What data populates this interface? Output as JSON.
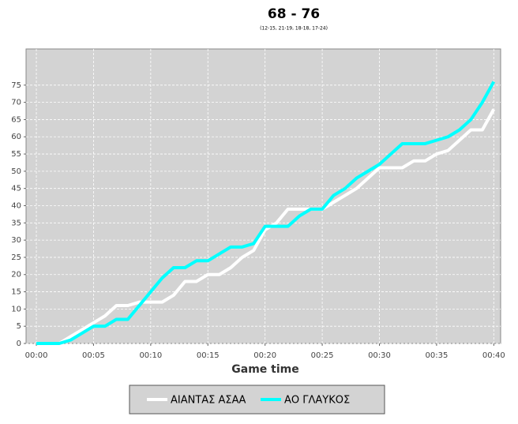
{
  "chart_data": {
    "type": "line",
    "title": "68 - 76",
    "subtitle": "(12-15, 21-19, 18-18, 17-24)",
    "x_label": "Game time",
    "x": [
      0,
      1,
      2,
      3,
      4,
      5,
      6,
      7,
      8,
      9,
      10,
      11,
      12,
      13,
      14,
      15,
      16,
      17,
      18,
      19,
      20,
      21,
      22,
      23,
      24,
      25,
      26,
      27,
      28,
      29,
      30,
      31,
      32,
      33,
      34,
      35,
      36,
      37,
      38,
      39,
      40
    ],
    "series": [
      {
        "name": "ΑΙΑΝΤΑΣ ΑΣΑΑ",
        "color": "#ffffff",
        "values": [
          0,
          0,
          0,
          2,
          4,
          6,
          8,
          11,
          11,
          12,
          12,
          12,
          14,
          18,
          18,
          20,
          20,
          22,
          25,
          27,
          33,
          35,
          39,
          39,
          39,
          39,
          41,
          43,
          45,
          48,
          51,
          51,
          51,
          53,
          53,
          55,
          56,
          59,
          62,
          62,
          68
        ]
      },
      {
        "name": "ΑΟ ΓΛΑΥΚΟΣ",
        "color": "#00ffff",
        "values": [
          0,
          0,
          0,
          1,
          3,
          5,
          5,
          7,
          7,
          11,
          15,
          19,
          22,
          22,
          24,
          24,
          26,
          28,
          28,
          29,
          34,
          34,
          34,
          37,
          39,
          39,
          43,
          45,
          48,
          50,
          52,
          55,
          58,
          58,
          58,
          59,
          60,
          62,
          65,
          70,
          76
        ]
      }
    ],
    "xlim": [
      -0.9,
      40.6
    ],
    "xticks": [
      {
        "value": 0,
        "label": "00:00"
      },
      {
        "value": 5,
        "label": "00:05"
      },
      {
        "value": 10,
        "label": "00:10"
      },
      {
        "value": 15,
        "label": "00:15"
      },
      {
        "value": 20,
        "label": "00:20"
      },
      {
        "value": 25,
        "label": "00:25"
      },
      {
        "value": 30,
        "label": "00:30"
      },
      {
        "value": 35,
        "label": "00:35"
      },
      {
        "value": 40,
        "label": "00:40"
      }
    ],
    "ylim": [
      0,
      85.5
    ],
    "yticks": [
      0,
      5,
      10,
      15,
      20,
      25,
      30,
      35,
      40,
      45,
      50,
      55,
      60,
      65,
      70,
      75
    ],
    "grid": true,
    "legend": "bottom"
  }
}
